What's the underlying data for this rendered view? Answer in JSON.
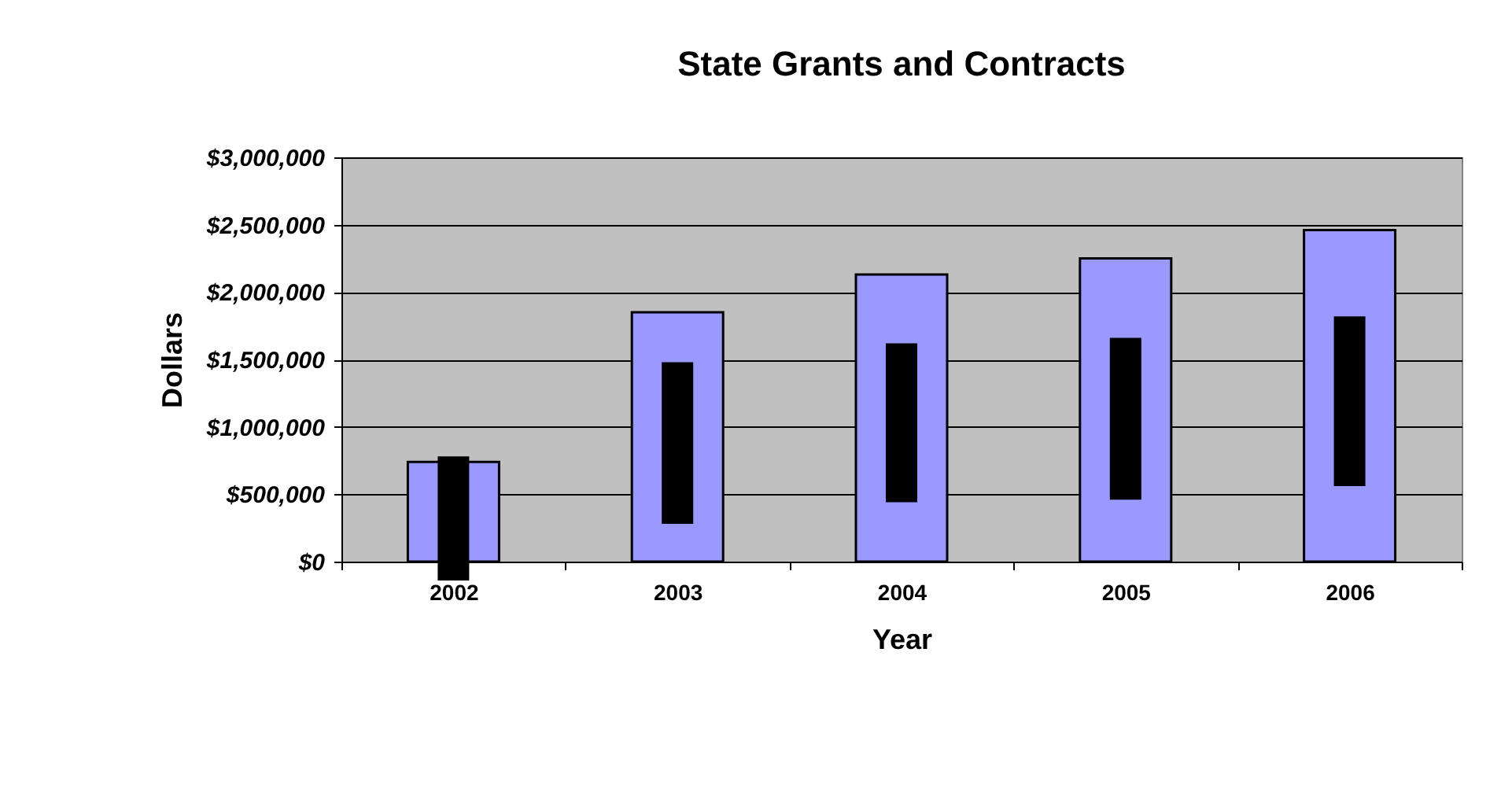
{
  "chart_data": {
    "type": "bar",
    "title": "State Grants and Contracts",
    "xlabel": "Year",
    "ylabel": "Dollars",
    "categories": [
      "2002",
      "2003",
      "2004",
      "2005",
      "2006"
    ],
    "series": [
      {
        "color": "#9999ff",
        "values": [
          740000,
          1850000,
          2130000,
          2250000,
          2460000
        ]
      },
      {
        "color": "#000000",
        "values": [
          920000,
          1200000,
          1180000,
          1200000,
          1260000
        ],
        "base": [
          -140000,
          280000,
          440000,
          460000,
          560000
        ]
      }
    ],
    "ylim": [
      0,
      3000000
    ],
    "yticks": [
      {
        "value": 0,
        "label": "$0"
      },
      {
        "value": 500000,
        "label": "$500,000"
      },
      {
        "value": 1000000,
        "label": "$1,000,000"
      },
      {
        "value": 1500000,
        "label": "$1,500,000"
      },
      {
        "value": 2000000,
        "label": "$2,000,000"
      },
      {
        "value": 2500000,
        "label": "$2,500,000"
      },
      {
        "value": 3000000,
        "label": "$3,000,000"
      }
    ],
    "grid": "y"
  }
}
